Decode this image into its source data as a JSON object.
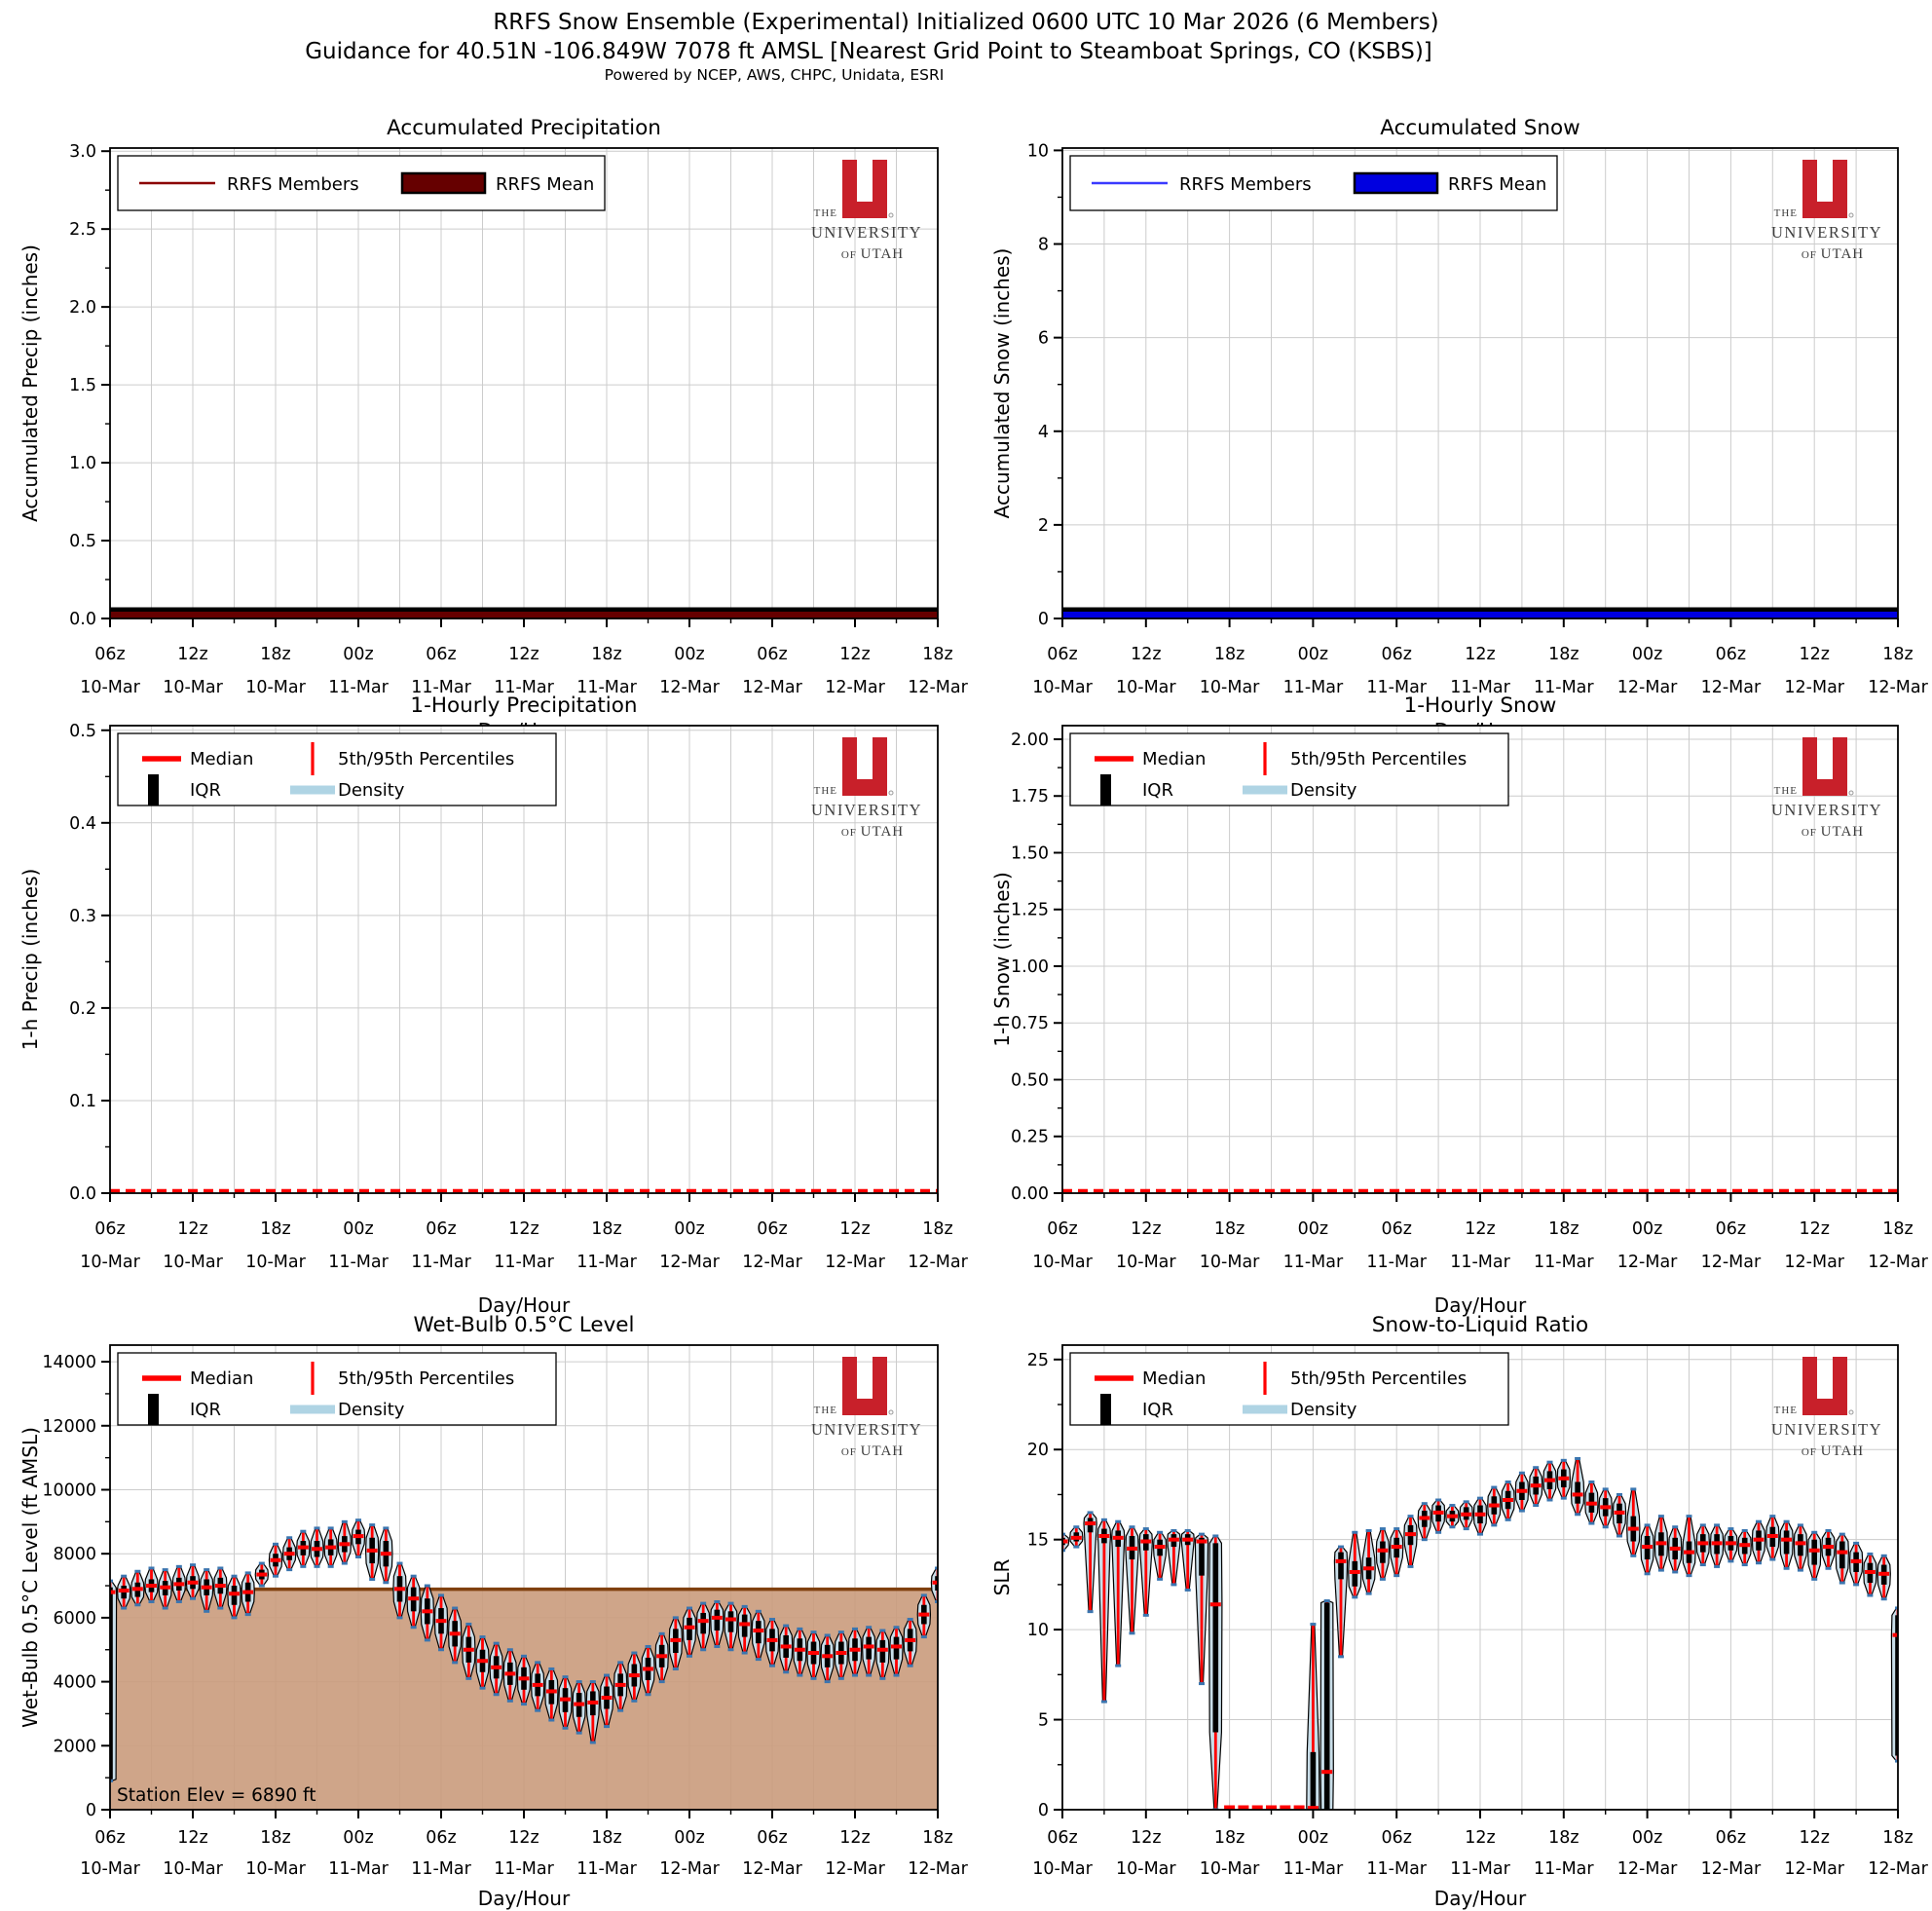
{
  "figure": {
    "title_line1": "RRFS Snow Ensemble (Experimental) Initialized 0600 UTC 10 Mar 2026 (6 Members)",
    "title_line2": "Guidance for 40.51N -106.849W 7078 ft AMSL [Nearest Grid Point to Steamboat Springs, CO (KSBS)]",
    "title_line3": "Powered by NCEP, AWS, CHPC, Unidata, ESRI",
    "x_axis": {
      "label": "Day/Hour",
      "hours_total": 60,
      "tick_hours": [
        0,
        6,
        12,
        18,
        24,
        30,
        36,
        42,
        48,
        54,
        60
      ],
      "tick_top": [
        "06z",
        "12z",
        "18z",
        "00z",
        "06z",
        "12z",
        "18z",
        "00z",
        "06z",
        "12z",
        "18z"
      ],
      "tick_bottom": [
        "10-Mar",
        "10-Mar",
        "10-Mar",
        "11-Mar",
        "11-Mar",
        "11-Mar",
        "11-Mar",
        "12-Mar",
        "12-Mar",
        "12-Mar",
        "12-Mar"
      ]
    },
    "logo": {
      "the": "THE",
      "university": "UNIVERSITY",
      "of": "OF",
      "utah": "UTAH"
    },
    "colors": {
      "member_red": "#8B0000",
      "mean_red": "#660000",
      "member_blue": "#3A3AFF",
      "mean_blue": "#0000E0",
      "median_red": "#FF0000",
      "iqr_black": "#000000",
      "density_fill": "#C9DEE9",
      "density_legend": "#AFD4E4",
      "whisker_cap_blue": "#3B75AF",
      "terrain_tan": "#CA9B7C",
      "terrain_line_brown": "#80400F",
      "grid_gray": "#CCCCCC",
      "logo_red": "#C8202A"
    }
  },
  "chart_data": [
    {
      "id": "accumulated-precipitation",
      "type": "line",
      "title": "Accumulated Precipitation",
      "ylabel": "Accumulated Precip (inches)",
      "ylim": [
        0,
        3.02
      ],
      "ytick_values": [
        0,
        0.5,
        1.0,
        1.5,
        2.0,
        2.5,
        3.0
      ],
      "ytick_labels": [
        "0.0",
        "0.5",
        "1.0",
        "1.5",
        "2.0",
        "2.5",
        "3.0"
      ],
      "legend": {
        "members": "RRFS Members",
        "mean": "RRFS Mean"
      },
      "member_color": "#8B0000",
      "mean_color": "#660000",
      "series": {
        "x_hours": [
          0,
          60
        ],
        "members_constant": 0.0,
        "mean_constant": 0.0
      }
    },
    {
      "id": "accumulated-snow",
      "type": "line",
      "title": "Accumulated Snow",
      "ylabel": "Accumulated Snow (inches)",
      "ylim": [
        0,
        10.05
      ],
      "ytick_values": [
        0,
        2,
        4,
        6,
        8,
        10
      ],
      "ytick_labels": [
        "0",
        "2",
        "4",
        "6",
        "8",
        "10"
      ],
      "legend": {
        "members": "RRFS Members",
        "mean": "RRFS Mean"
      },
      "member_color": "#3A3AFF",
      "mean_color": "#0000E0",
      "series": {
        "x_hours": [
          0,
          60
        ],
        "members_constant": 0.0,
        "mean_constant": 0.0
      }
    },
    {
      "id": "hourly-precipitation",
      "type": "violin",
      "title": "1-Hourly Precipitation",
      "ylabel": "1-h Precip (inches)",
      "ylim": [
        0,
        0.505
      ],
      "ytick_values": [
        0,
        0.1,
        0.2,
        0.3,
        0.4,
        0.5
      ],
      "ytick_labels": [
        "0.0",
        "0.1",
        "0.2",
        "0.3",
        "0.4",
        "0.5"
      ],
      "legend": {
        "median": "Median",
        "iqr": "IQR",
        "pct": "5th/95th Percentiles",
        "density": "Density"
      },
      "flat_zero": true,
      "median_constant": 0.0
    },
    {
      "id": "hourly-snow",
      "type": "violin",
      "title": "1-Hourly Snow",
      "ylabel": "1-h Snow (inches)",
      "ylim": [
        0,
        2.06
      ],
      "ytick_values": [
        0,
        0.25,
        0.5,
        0.75,
        1.0,
        1.25,
        1.5,
        1.75,
        2.0
      ],
      "ytick_labels": [
        "0.00",
        "0.25",
        "0.50",
        "0.75",
        "1.00",
        "1.25",
        "1.50",
        "1.75",
        "2.00"
      ],
      "legend": {
        "median": "Median",
        "iqr": "IQR",
        "pct": "5th/95th Percentiles",
        "density": "Density"
      },
      "flat_zero": true,
      "median_constant": 0.0
    },
    {
      "id": "wet-bulb-level",
      "type": "violin",
      "title": "Wet-Bulb 0.5°C Level",
      "ylabel": "Wet-Bulb 0.5°C Level (ft AMSL)",
      "ylim": [
        0,
        14520
      ],
      "ytick_values": [
        0,
        2000,
        4000,
        6000,
        8000,
        10000,
        12000,
        14000
      ],
      "ytick_labels": [
        "0",
        "2000",
        "4000",
        "6000",
        "8000",
        "10000",
        "12000",
        "14000"
      ],
      "legend": {
        "median": "Median",
        "iqr": "IQR",
        "pct": "5th/95th Percentiles",
        "density": "Density"
      },
      "station_elev_ft": 6890,
      "annotation": "Station Elev = 6890 ft",
      "points_format": [
        "median",
        "q1",
        "q3",
        "p5",
        "p95"
      ],
      "points": [
        [
          6800,
          950,
          6950,
          900,
          7150
        ],
        [
          6850,
          6600,
          7000,
          6300,
          7300
        ],
        [
          6900,
          6650,
          7100,
          6400,
          7450
        ],
        [
          7000,
          6800,
          7200,
          6500,
          7550
        ],
        [
          6950,
          6700,
          7150,
          6300,
          7500
        ],
        [
          7050,
          6850,
          7250,
          6500,
          7600
        ],
        [
          7100,
          6900,
          7300,
          6600,
          7650
        ],
        [
          6950,
          6700,
          7200,
          6200,
          7500
        ],
        [
          7000,
          6750,
          7250,
          6300,
          7550
        ],
        [
          6750,
          6400,
          7000,
          6000,
          7300
        ],
        [
          6800,
          6500,
          7100,
          6100,
          7400
        ],
        [
          7350,
          7200,
          7500,
          7000,
          7700
        ],
        [
          7800,
          7600,
          8000,
          7300,
          8300
        ],
        [
          8000,
          7800,
          8200,
          7500,
          8500
        ],
        [
          8200,
          7950,
          8400,
          7600,
          8700
        ],
        [
          8150,
          7900,
          8400,
          7600,
          8800
        ],
        [
          8200,
          7950,
          8450,
          7600,
          8800
        ],
        [
          8300,
          8050,
          8550,
          7700,
          9000
        ],
        [
          8550,
          8300,
          8750,
          7900,
          9050
        ],
        [
          8100,
          7700,
          8500,
          7200,
          8900
        ],
        [
          8000,
          7600,
          8400,
          7100,
          8800
        ],
        [
          6900,
          6500,
          7300,
          6000,
          7700
        ],
        [
          6600,
          6200,
          6950,
          5700,
          7300
        ],
        [
          6200,
          5800,
          6600,
          5300,
          7000
        ],
        [
          5900,
          5500,
          6300,
          5000,
          6700
        ],
        [
          5500,
          5100,
          5900,
          4600,
          6300
        ],
        [
          5000,
          4600,
          5400,
          4100,
          5800
        ],
        [
          4650,
          4300,
          5000,
          3800,
          5400
        ],
        [
          4450,
          4100,
          4800,
          3600,
          5200
        ],
        [
          4250,
          3900,
          4600,
          3400,
          5000
        ],
        [
          4100,
          3750,
          4450,
          3300,
          4800
        ],
        [
          3900,
          3550,
          4250,
          3100,
          4600
        ],
        [
          3700,
          3300,
          4050,
          2800,
          4400
        ],
        [
          3450,
          3050,
          3800,
          2550,
          4150
        ],
        [
          3300,
          2900,
          3650,
          2400,
          4000
        ],
        [
          3350,
          2950,
          3700,
          2100,
          4000
        ],
        [
          3500,
          3150,
          3850,
          2600,
          4200
        ],
        [
          3900,
          3550,
          4250,
          3100,
          4600
        ],
        [
          4200,
          3850,
          4550,
          3400,
          4900
        ],
        [
          4400,
          4050,
          4750,
          3600,
          5100
        ],
        [
          4800,
          4450,
          5150,
          4000,
          5500
        ],
        [
          5300,
          4900,
          5650,
          4400,
          6000
        ],
        [
          5700,
          5300,
          6000,
          4800,
          6300
        ],
        [
          5900,
          5500,
          6150,
          5000,
          6450
        ],
        [
          6000,
          5600,
          6250,
          5100,
          6500
        ],
        [
          5950,
          5550,
          6200,
          5000,
          6450
        ],
        [
          5800,
          5400,
          6100,
          4900,
          6350
        ],
        [
          5600,
          5200,
          5900,
          4700,
          6200
        ],
        [
          5300,
          4950,
          5650,
          4500,
          5950
        ],
        [
          5100,
          4750,
          5450,
          4300,
          5750
        ],
        [
          5000,
          4650,
          5350,
          4200,
          5650
        ],
        [
          4900,
          4550,
          5250,
          4100,
          5550
        ],
        [
          4800,
          4450,
          5150,
          4000,
          5450
        ],
        [
          4900,
          4550,
          5250,
          4100,
          5550
        ],
        [
          5000,
          4650,
          5350,
          4200,
          5650
        ],
        [
          5100,
          4700,
          5400,
          4200,
          5700
        ],
        [
          5000,
          4600,
          5300,
          4100,
          5600
        ],
        [
          5100,
          4700,
          5400,
          4200,
          5700
        ],
        [
          5300,
          4950,
          5650,
          4500,
          5950
        ],
        [
          6100,
          5800,
          6400,
          5400,
          6700
        ],
        [
          7100,
          6850,
          7300,
          6500,
          7550
        ]
      ]
    },
    {
      "id": "snow-to-liquid-ratio",
      "type": "violin",
      "title": "Snow-to-Liquid Ratio",
      "ylabel": "SLR",
      "ylim": [
        0,
        25.8
      ],
      "ytick_values": [
        0,
        5,
        10,
        15,
        20,
        25
      ],
      "ytick_labels": [
        "0",
        "5",
        "10",
        "15",
        "20",
        "25"
      ],
      "legend": {
        "median": "Median",
        "iqr": "IQR",
        "pct": "5th/95th Percentiles",
        "density": "Density"
      },
      "points_format": [
        "median",
        "q1",
        "q3",
        "p5",
        "p95"
      ],
      "points": [
        [
          14.9,
          14.7,
          15.1,
          14.4,
          15.3
        ],
        [
          15.1,
          14.9,
          15.4,
          14.6,
          15.7
        ],
        [
          15.9,
          15.4,
          16.2,
          11.0,
          16.5
        ],
        [
          15.2,
          14.8,
          15.6,
          6.0,
          16.1
        ],
        [
          15.1,
          14.6,
          15.5,
          8.0,
          16.0
        ],
        [
          14.5,
          13.9,
          15.2,
          9.8,
          15.7
        ],
        [
          14.9,
          14.4,
          15.3,
          10.8,
          15.6
        ],
        [
          14.6,
          14.1,
          15.0,
          12.8,
          15.4
        ],
        [
          15.0,
          14.6,
          15.3,
          12.5,
          15.5
        ],
        [
          15.0,
          14.7,
          15.3,
          12.2,
          15.5
        ],
        [
          14.9,
          13.0,
          15.1,
          7.0,
          15.3
        ],
        [
          11.4,
          4.3,
          14.8,
          0.0,
          15.2
        ],
        [
          0,
          0,
          0,
          0,
          0
        ],
        [
          0,
          0,
          0,
          0,
          0
        ],
        [
          0,
          0,
          0,
          0,
          0
        ],
        [
          0,
          0,
          0,
          0,
          0
        ],
        [
          0,
          0,
          0,
          0,
          0
        ],
        [
          0,
          0,
          0,
          0,
          0
        ],
        [
          0.1,
          0,
          3.2,
          0,
          10.3
        ],
        [
          2.1,
          0,
          11.5,
          0,
          11.6
        ],
        [
          13.8,
          12.8,
          14.3,
          8.5,
          14.6
        ],
        [
          13.2,
          12.4,
          13.8,
          11.8,
          15.4
        ],
        [
          13.4,
          12.8,
          14.0,
          12.0,
          15.5
        ],
        [
          14.4,
          13.7,
          14.9,
          12.8,
          15.6
        ],
        [
          14.6,
          14.0,
          15.1,
          13.0,
          15.6
        ],
        [
          15.3,
          14.7,
          15.8,
          13.5,
          16.3
        ],
        [
          16.2,
          15.7,
          16.6,
          15.0,
          17.0
        ],
        [
          16.5,
          16.0,
          16.9,
          15.4,
          17.2
        ],
        [
          16.3,
          16.0,
          16.6,
          15.7,
          16.9
        ],
        [
          16.4,
          16.1,
          16.8,
          15.6,
          17.1
        ],
        [
          16.4,
          15.9,
          16.9,
          15.3,
          17.3
        ],
        [
          16.9,
          16.4,
          17.4,
          15.8,
          17.9
        ],
        [
          17.2,
          16.7,
          17.7,
          16.1,
          18.2
        ],
        [
          17.7,
          17.2,
          18.2,
          16.6,
          18.7
        ],
        [
          18.0,
          17.5,
          18.5,
          16.9,
          19.0
        ],
        [
          18.3,
          17.8,
          18.8,
          17.2,
          19.3
        ],
        [
          18.4,
          17.9,
          18.9,
          17.3,
          19.4
        ],
        [
          17.5,
          17.0,
          18.2,
          16.4,
          19.5
        ],
        [
          17.0,
          16.5,
          17.6,
          15.9,
          18.2
        ],
        [
          16.8,
          16.3,
          17.3,
          15.7,
          17.8
        ],
        [
          16.5,
          15.9,
          17.0,
          15.2,
          17.5
        ],
        [
          15.6,
          14.9,
          16.3,
          14.1,
          17.8
        ],
        [
          14.6,
          13.9,
          15.2,
          13.1,
          15.8
        ],
        [
          14.8,
          14.1,
          15.4,
          13.3,
          16.3
        ],
        [
          14.5,
          13.9,
          15.1,
          13.2,
          15.7
        ],
        [
          14.3,
          13.7,
          14.9,
          13.0,
          16.3
        ],
        [
          14.8,
          14.3,
          15.3,
          13.6,
          15.8
        ],
        [
          14.8,
          14.2,
          15.3,
          13.5,
          15.8
        ],
        [
          14.8,
          14.4,
          15.2,
          13.8,
          15.6
        ],
        [
          14.7,
          14.2,
          15.1,
          13.6,
          15.5
        ],
        [
          15.0,
          14.4,
          15.5,
          13.7,
          16.0
        ],
        [
          15.2,
          14.6,
          15.7,
          13.9,
          16.3
        ],
        [
          15.0,
          14.2,
          15.5,
          13.4,
          16.0
        ],
        [
          14.8,
          14.1,
          15.3,
          13.3,
          15.8
        ],
        [
          14.4,
          13.6,
          15.0,
          12.8,
          15.4
        ],
        [
          14.6,
          14.1,
          15.1,
          13.4,
          15.5
        ],
        [
          14.3,
          13.4,
          14.9,
          12.6,
          15.3
        ],
        [
          13.8,
          13.2,
          14.3,
          12.5,
          14.8
        ],
        [
          13.2,
          12.6,
          13.7,
          11.9,
          14.2
        ],
        [
          13.1,
          12.5,
          13.6,
          11.7,
          14.1
        ],
        [
          9.7,
          3.0,
          10.8,
          2.7,
          11.2
        ]
      ]
    }
  ]
}
